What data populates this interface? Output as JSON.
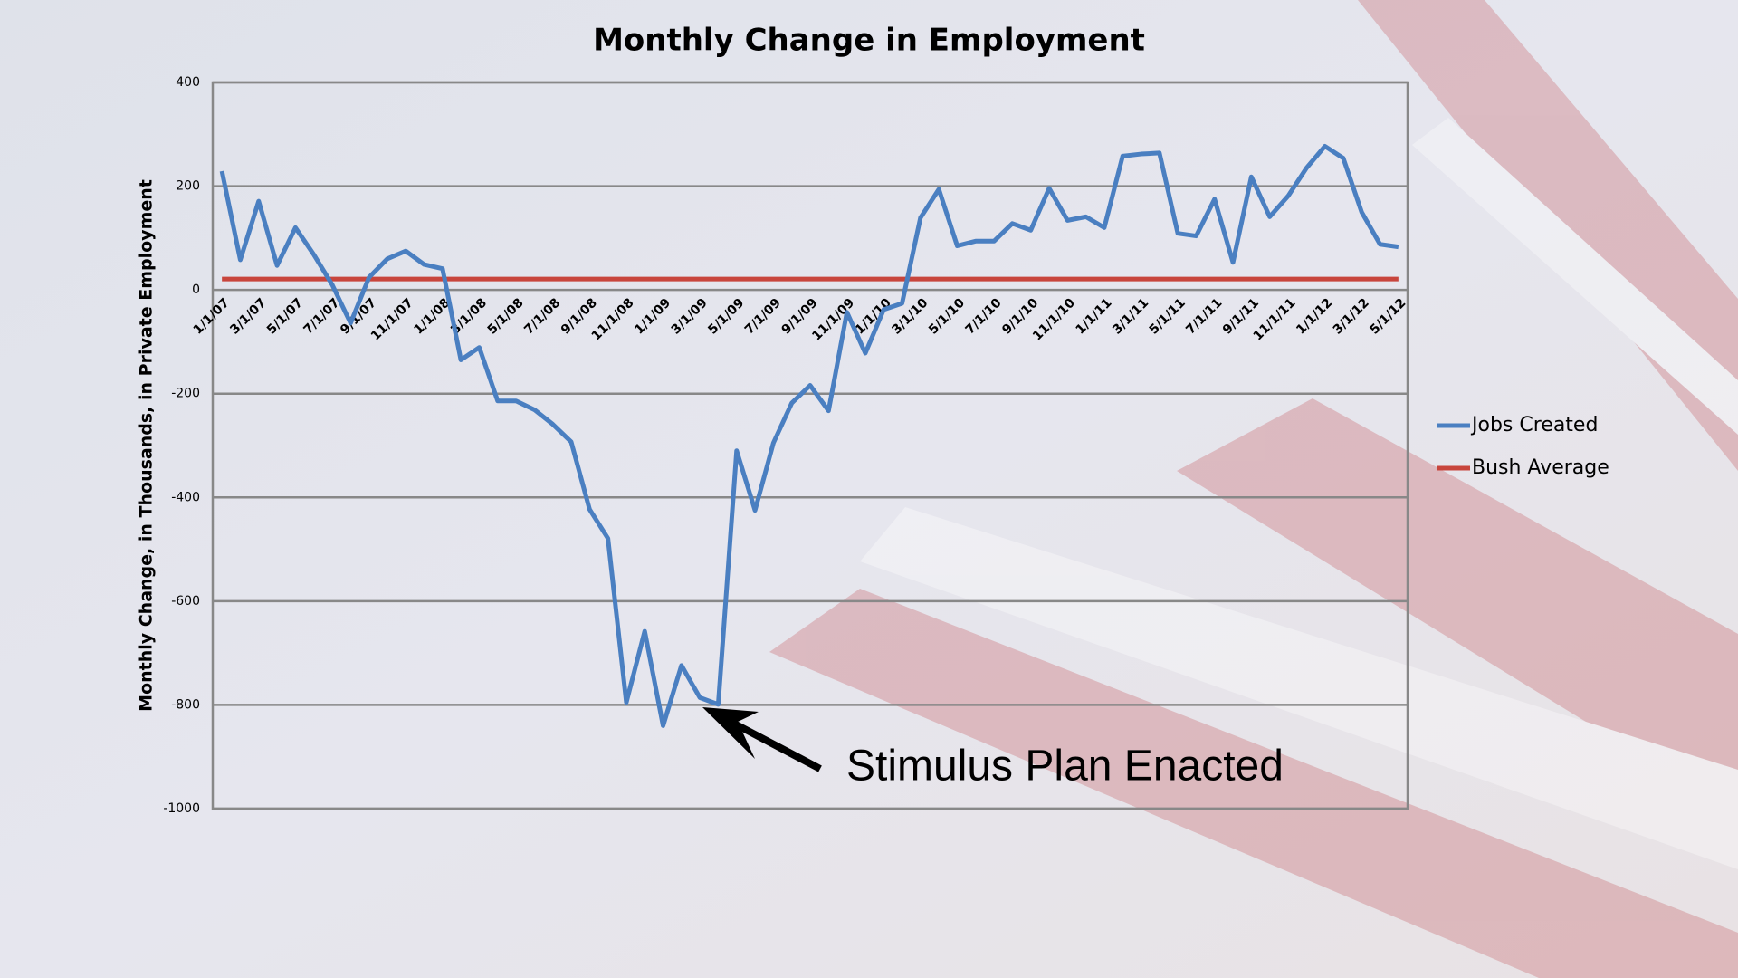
{
  "chart_data": {
    "type": "line",
    "title": "Monthly Change in Employment",
    "y_label": "Monthly Change, in Thousands, in Private Employment",
    "annotation": "Stimulus Plan Enacted",
    "categories": [
      "1/1/07",
      null,
      "3/1/07",
      null,
      "5/1/07",
      null,
      "7/1/07",
      null,
      "9/1/07",
      null,
      "11/1/07",
      null,
      "1/1/08",
      null,
      "3/1/08",
      null,
      "5/1/08",
      null,
      "7/1/08",
      null,
      "9/1/08",
      null,
      "11/1/08",
      null,
      "1/1/09",
      null,
      "3/1/09",
      null,
      "5/1/09",
      null,
      "7/1/09",
      null,
      "9/1/09",
      null,
      "11/1/09",
      null,
      "1/1/10",
      null,
      "3/1/10",
      null,
      "5/1/10",
      null,
      "7/1/10",
      null,
      "9/1/10",
      null,
      "11/1/10",
      null,
      "1/1/11",
      null,
      "3/1/11",
      null,
      "5/1/11",
      null,
      "7/1/11",
      null,
      "9/1/11",
      null,
      "11/1/11",
      null,
      "1/1/12",
      null,
      "3/1/12",
      null,
      "5/1/12"
    ],
    "series": [
      {
        "name": "Jobs Created",
        "color": "#4a7fc1",
        "values": [
          229,
          58,
          171,
          47,
          120,
          68,
          10,
          -64,
          24,
          60,
          75,
          49,
          41,
          -135,
          -111,
          -214,
          -214,
          -231,
          -259,
          -293,
          -423,
          -479,
          -795,
          -658,
          -840,
          -724,
          -786,
          -799,
          -310,
          -425,
          -295,
          -218,
          -184,
          -233,
          -43,
          -122,
          -38,
          -26,
          139,
          194,
          85,
          94,
          94,
          128,
          115,
          196,
          134,
          141,
          120,
          258,
          262,
          264,
          109,
          104,
          175,
          53,
          218,
          141,
          181,
          235,
          277,
          254,
          150,
          88,
          83
        ]
      },
      {
        "name": "Bush Average",
        "color": "#c8453c",
        "values": [
          21,
          21,
          21,
          21,
          21,
          21,
          21,
          21,
          21,
          21,
          21,
          21,
          21,
          21,
          21,
          21,
          21,
          21,
          21,
          21,
          21,
          21,
          21,
          21,
          21,
          21,
          21,
          21,
          21,
          21,
          21,
          21,
          21,
          21,
          21,
          21,
          21,
          21,
          21,
          21,
          21,
          21,
          21,
          21,
          21,
          21,
          21,
          21,
          21,
          21,
          21,
          21,
          21,
          21,
          21,
          21,
          21,
          21,
          21,
          21,
          21,
          21,
          21,
          21,
          21
        ]
      }
    ],
    "ylim": [
      -1000,
      400
    ],
    "yticks": [
      -1000,
      -800,
      -600,
      -400,
      -200,
      0,
      200,
      400
    ],
    "grid": true,
    "legend": "right",
    "annotation_index": 27
  }
}
